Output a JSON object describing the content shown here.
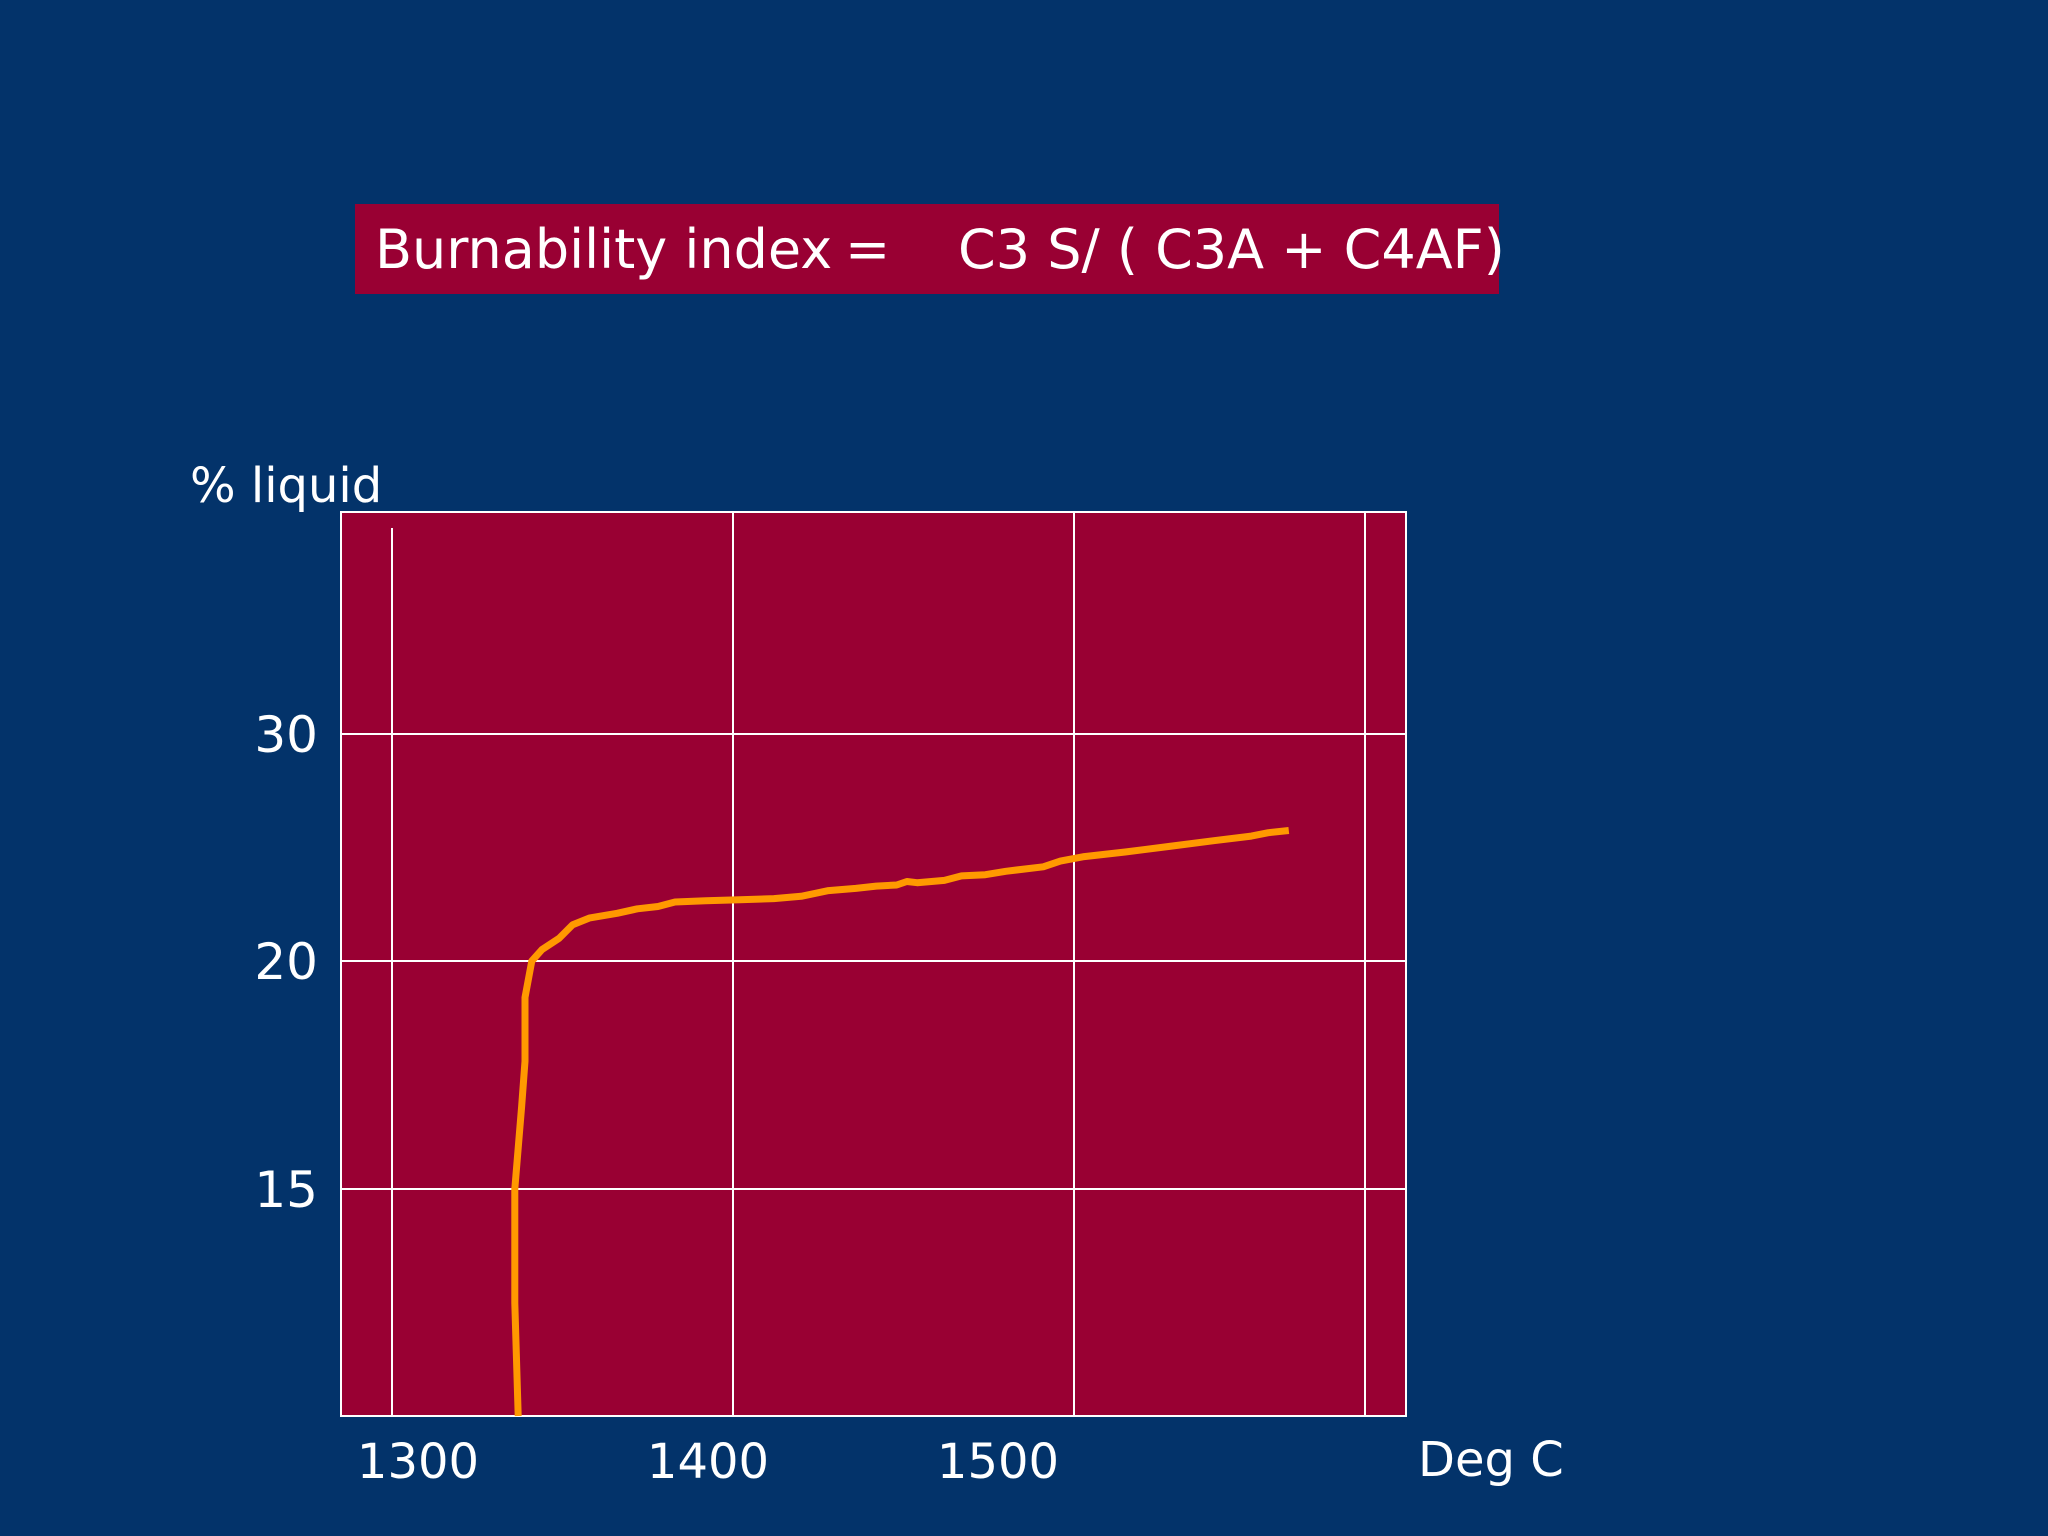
{
  "title": {
    "label": "Burnability index",
    "equals": "=",
    "formula": "C3 S/ ( C3A + C4AF)"
  },
  "colors": {
    "background": "#03336a",
    "panel": "#990033",
    "grid": "#ffffff",
    "curve": "#ff9900",
    "text": "#ffffff"
  },
  "chart_data": {
    "type": "line",
    "ylabel": "% liquid",
    "xlabel": "Deg C",
    "x_ticks": [
      1300,
      1400,
      1500
    ],
    "y_ticks": [
      15,
      20,
      30
    ],
    "series": [
      {
        "points": [
          [
            1337,
            9.9
          ],
          [
            1336,
            12.5
          ],
          [
            1336,
            15.0
          ],
          [
            1338,
            16.8
          ],
          [
            1339,
            17.8
          ],
          [
            1339,
            19.2
          ],
          [
            1341,
            20.0
          ],
          [
            1344,
            20.5
          ],
          [
            1349,
            21.0
          ],
          [
            1353,
            21.6
          ],
          [
            1358,
            21.9
          ],
          [
            1366,
            22.1
          ],
          [
            1372,
            22.3
          ],
          [
            1378,
            22.4
          ],
          [
            1383,
            22.6
          ],
          [
            1392,
            22.65
          ],
          [
            1402,
            22.7
          ],
          [
            1412,
            22.75
          ],
          [
            1420,
            22.85
          ],
          [
            1428,
            23.1
          ],
          [
            1436,
            23.2
          ],
          [
            1442,
            23.3
          ],
          [
            1448,
            23.35
          ],
          [
            1451,
            23.5
          ],
          [
            1454,
            23.45
          ],
          [
            1462,
            23.55
          ],
          [
            1467,
            23.75
          ],
          [
            1474,
            23.8
          ],
          [
            1480,
            23.95
          ],
          [
            1491,
            24.15
          ],
          [
            1496,
            24.4
          ],
          [
            1503,
            24.6
          ],
          [
            1515,
            24.8
          ],
          [
            1528,
            25.05
          ],
          [
            1541,
            25.3
          ],
          [
            1552,
            25.5
          ],
          [
            1557,
            25.65
          ],
          [
            1563,
            25.75
          ]
        ]
      }
    ]
  }
}
